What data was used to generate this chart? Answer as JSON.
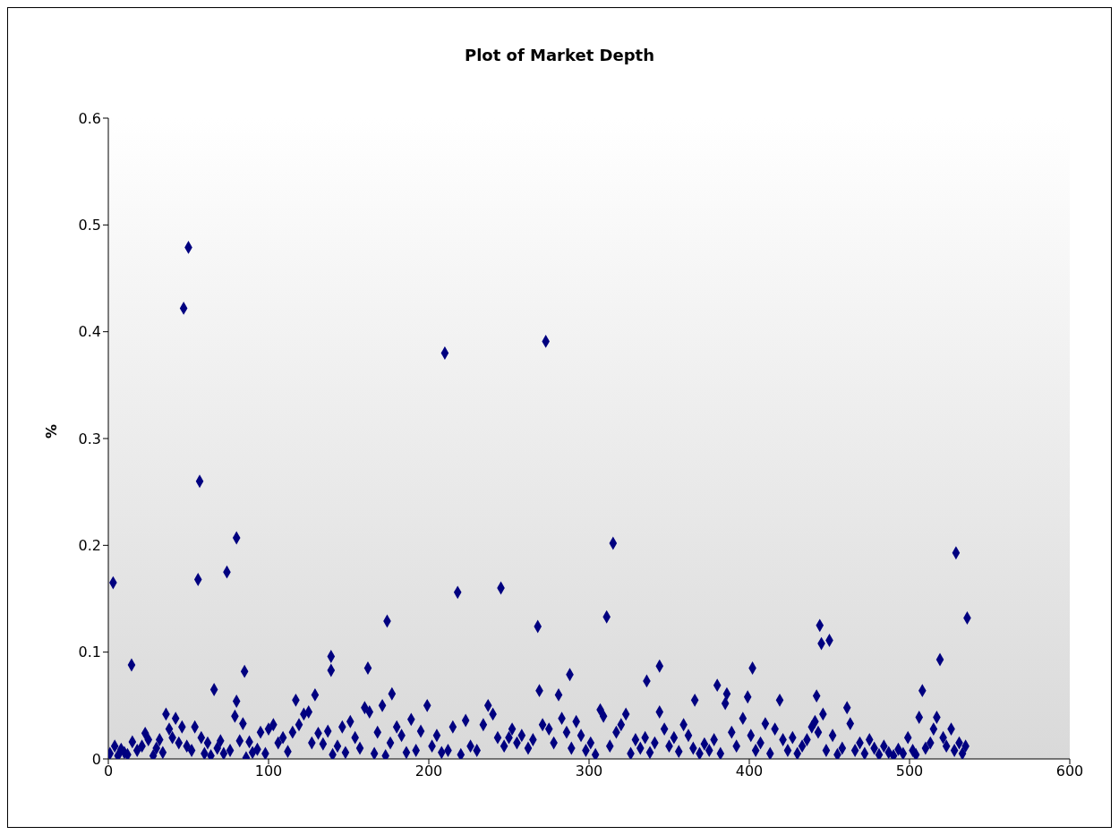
{
  "chart_data": {
    "type": "scatter",
    "title": "Plot of Market Depth",
    "ylabel": "%",
    "xlim": [
      0,
      600
    ],
    "xticks": [
      0,
      100,
      200,
      300,
      400,
      500,
      600
    ],
    "ylim": [
      0,
      0.6
    ],
    "yticks": [
      0,
      0.1,
      0.2,
      0.3,
      0.4,
      0.5,
      0.6
    ],
    "marker": "diamond",
    "grid": false,
    "series": [
      {
        "color": "#000080",
        "x": [
          3,
          14.5,
          47,
          50,
          57,
          56,
          66,
          74,
          80,
          80,
          85,
          139,
          139,
          162,
          174,
          177,
          210,
          218,
          245,
          268,
          273,
          269,
          288,
          311,
          315,
          336,
          344,
          366,
          380,
          386,
          402,
          419,
          444,
          445,
          450,
          442,
          508,
          519,
          529,
          536,
          506,
          517,
          1,
          4,
          6,
          8,
          10,
          12,
          15,
          18,
          21,
          23,
          25,
          28,
          30,
          32,
          34,
          36,
          38,
          40,
          42,
          44,
          46,
          49,
          52,
          54,
          58,
          60,
          62,
          64,
          68,
          70,
          72,
          76,
          79,
          82,
          84,
          86,
          88,
          90,
          93,
          95,
          98,
          100,
          103,
          106,
          109,
          112,
          115,
          117,
          119,
          122,
          125,
          127,
          129,
          131,
          134,
          137,
          140,
          143,
          146,
          148,
          151,
          154,
          157,
          160,
          163,
          166,
          168,
          171,
          173,
          176,
          180,
          183,
          186,
          189,
          192,
          195,
          199,
          202,
          205,
          208,
          212,
          215,
          220,
          223,
          226,
          230,
          234,
          237,
          240,
          243,
          247,
          250,
          252,
          255,
          258,
          262,
          265,
          271,
          275,
          278,
          281,
          283,
          286,
          289,
          292,
          295,
          298,
          301,
          304,
          307,
          309,
          313,
          317,
          320,
          323,
          326,
          329,
          332,
          335,
          338,
          341,
          344,
          347,
          350,
          353,
          356,
          359,
          362,
          365,
          369,
          372,
          375,
          378,
          382,
          385,
          389,
          392,
          396,
          399,
          401,
          404,
          407,
          410,
          413,
          416,
          421,
          424,
          427,
          430,
          433,
          436,
          439,
          441,
          443,
          446,
          448,
          452,
          455,
          458,
          461,
          463,
          466,
          469,
          472,
          475,
          478,
          481,
          484,
          487,
          490,
          493,
          496,
          499,
          502,
          504,
          510,
          513,
          515,
          521,
          523,
          526,
          528,
          531,
          533,
          535
        ],
        "values": [
          0.165,
          0.088,
          0.422,
          0.479,
          0.26,
          0.168,
          0.065,
          0.175,
          0.207,
          0.054,
          0.082,
          0.096,
          0.083,
          0.085,
          0.129,
          0.061,
          0.38,
          0.156,
          0.16,
          0.124,
          0.391,
          0.064,
          0.079,
          0.133,
          0.202,
          0.073,
          0.087,
          0.055,
          0.069,
          0.061,
          0.085,
          0.055,
          0.125,
          0.108,
          0.111,
          0.059,
          0.064,
          0.093,
          0.193,
          0.132,
          0.039,
          0.039,
          0.005,
          0.012,
          0.003,
          0.009,
          0.006,
          0.004,
          0.016,
          0.008,
          0.012,
          0.024,
          0.018,
          0.003,
          0.01,
          0.018,
          0.006,
          0.042,
          0.028,
          0.02,
          0.038,
          0.015,
          0.03,
          0.012,
          0.008,
          0.03,
          0.02,
          0.005,
          0.015,
          0.003,
          0.01,
          0.017,
          0.005,
          0.008,
          0.04,
          0.017,
          0.033,
          0.001,
          0.016,
          0.006,
          0.009,
          0.025,
          0.005,
          0.028,
          0.032,
          0.015,
          0.02,
          0.007,
          0.025,
          0.055,
          0.032,
          0.042,
          0.044,
          0.015,
          0.06,
          0.024,
          0.014,
          0.026,
          0.004,
          0.012,
          0.03,
          0.006,
          0.035,
          0.02,
          0.01,
          0.048,
          0.044,
          0.005,
          0.025,
          0.05,
          0.003,
          0.015,
          0.03,
          0.022,
          0.006,
          0.037,
          0.008,
          0.026,
          0.05,
          0.012,
          0.022,
          0.006,
          0.008,
          0.03,
          0.004,
          0.036,
          0.012,
          0.008,
          0.032,
          0.05,
          0.042,
          0.02,
          0.012,
          0.02,
          0.028,
          0.015,
          0.022,
          0.01,
          0.018,
          0.032,
          0.028,
          0.015,
          0.06,
          0.038,
          0.025,
          0.01,
          0.035,
          0.022,
          0.008,
          0.015,
          0.004,
          0.046,
          0.04,
          0.012,
          0.025,
          0.032,
          0.042,
          0.005,
          0.018,
          0.01,
          0.02,
          0.006,
          0.015,
          0.044,
          0.028,
          0.012,
          0.02,
          0.007,
          0.032,
          0.022,
          0.01,
          0.005,
          0.014,
          0.008,
          0.018,
          0.005,
          0.052,
          0.025,
          0.012,
          0.038,
          0.058,
          0.022,
          0.008,
          0.015,
          0.033,
          0.005,
          0.028,
          0.018,
          0.008,
          0.02,
          0.005,
          0.012,
          0.018,
          0.03,
          0.035,
          0.025,
          0.042,
          0.008,
          0.022,
          0.004,
          0.01,
          0.048,
          0.033,
          0.008,
          0.015,
          0.005,
          0.018,
          0.01,
          0.004,
          0.012,
          0.006,
          0.003,
          0.009,
          0.005,
          0.02,
          0.008,
          0.004,
          0.01,
          0.015,
          0.028,
          0.02,
          0.012,
          0.028,
          0.008,
          0.015,
          0.005,
          0.012
        ]
      }
    ]
  }
}
